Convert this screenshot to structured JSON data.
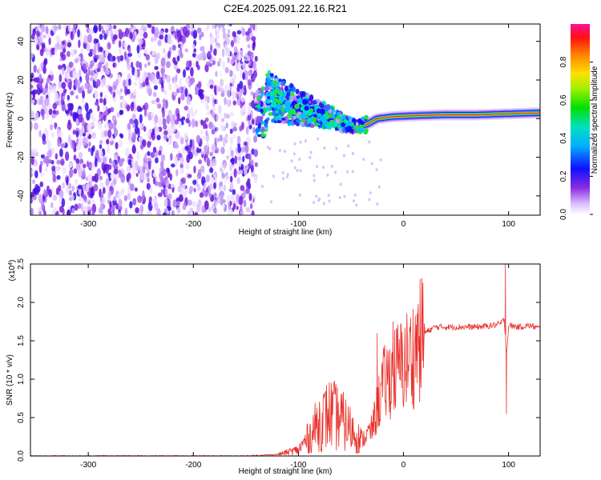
{
  "title": "C2E4.2025.091.22.16.R21",
  "chart_data": [
    {
      "type": "heatmap",
      "title": "",
      "xlabel": "Height of straight line (km)",
      "ylabel": "Frequency (Hz)",
      "xlim": [
        -355,
        130
      ],
      "ylim": [
        -50,
        49
      ],
      "xticks": [
        "-300",
        "-200",
        "-100",
        "0",
        "100"
      ],
      "xtick_values": [
        -300,
        -200,
        -100,
        0,
        100
      ],
      "yticks": [
        "-40",
        "-20",
        "0",
        "20",
        "40"
      ],
      "ytick_values": [
        -40,
        -20,
        0,
        20,
        40
      ],
      "colorbar": {
        "label": "Normalized spectral amplitude",
        "range": [
          0,
          1
        ],
        "ticks": [
          "0.0",
          "0.2",
          "0.4",
          "0.6",
          "0.8"
        ],
        "tick_values": [
          0.0,
          0.2,
          0.4,
          0.6,
          0.8
        ]
      },
      "features": {
        "noise_region_x": [
          -355,
          -140
        ],
        "scatter_region_x": [
          -140,
          -40
        ],
        "ridge_points": [
          {
            "x": -130,
            "y": 12
          },
          {
            "x": -110,
            "y": 8
          },
          {
            "x": -90,
            "y": 4
          },
          {
            "x": -70,
            "y": 1
          },
          {
            "x": -55,
            "y": -3
          },
          {
            "x": -45,
            "y": -4
          },
          {
            "x": -35,
            "y": -3
          },
          {
            "x": -25,
            "y": 0
          },
          {
            "x": -10,
            "y": 1
          },
          {
            "x": 10,
            "y": 1.5
          },
          {
            "x": 40,
            "y": 2
          },
          {
            "x": 70,
            "y": 2
          },
          {
            "x": 100,
            "y": 2.5
          },
          {
            "x": 130,
            "y": 3
          }
        ]
      }
    },
    {
      "type": "line",
      "title": "",
      "xlabel": "Height of straight line (km)",
      "ylabel": "SNR (10 * v/v)",
      "multiplier": "(x10",
      "multiplier_exp": "4",
      "multiplier_close": ")",
      "xlim": [
        -355,
        130
      ],
      "ylim": [
        0,
        2.5
      ],
      "xticks": [
        "-300",
        "-200",
        "-100",
        "0",
        "100"
      ],
      "xtick_values": [
        -300,
        -200,
        -100,
        0,
        100
      ],
      "yticks": [
        "0.0",
        "0.5",
        "1.0",
        "1.5",
        "2.0",
        "2.5"
      ],
      "ytick_values": [
        0.0,
        0.5,
        1.0,
        1.5,
        2.0,
        2.5
      ],
      "series": [
        {
          "name": "SNR",
          "color": "#e8302a",
          "x": [
            -355,
            -150,
            -120,
            -100,
            -90,
            -80,
            -70,
            -60,
            -50,
            -40,
            -30,
            -20,
            -10,
            0,
            10,
            20,
            30,
            50,
            70,
            85,
            92,
            96,
            98,
            100,
            110,
            120,
            130
          ],
          "y": [
            0.0,
            0.0,
            0.02,
            0.08,
            0.25,
            0.45,
            0.55,
            0.48,
            0.35,
            0.2,
            0.35,
            0.9,
            1.1,
            1.2,
            1.35,
            1.6,
            1.68,
            1.68,
            1.68,
            1.7,
            1.72,
            1.78,
            1.3,
            1.7,
            1.68,
            1.7,
            1.66
          ],
          "spikes": [
            {
              "x": -65,
              "y": 0.8
            },
            {
              "x": -25,
              "y": 1.6
            },
            {
              "x": -10,
              "y": 1.75
            },
            {
              "x": 13,
              "y": 1.85
            },
            {
              "x": 97,
              "y": 2.5
            },
            {
              "x": 98,
              "y": 0.55
            }
          ]
        }
      ]
    }
  ],
  "colors": {
    "axis": "#000000",
    "line": "#e8302a",
    "background": "#ffffff"
  }
}
